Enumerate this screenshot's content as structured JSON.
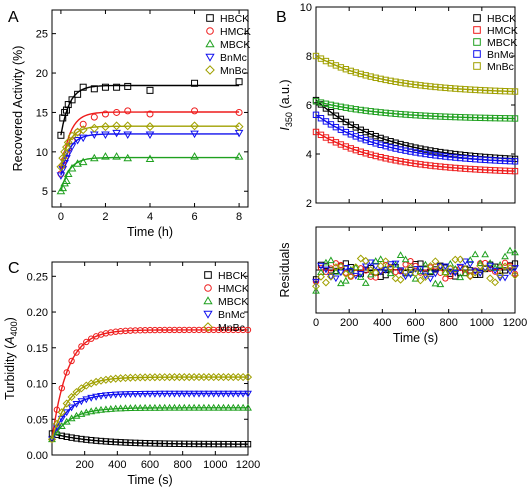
{
  "chart_data": [
    {
      "panel": "A",
      "type": "scatter",
      "xlabel": "Time (h)",
      "ylabel": "Recovered Activity (%)",
      "xlim": [
        -0.4,
        8.4
      ],
      "ylim": [
        3,
        28
      ],
      "xticks": [
        0,
        2,
        4,
        6,
        8
      ],
      "yticks": [
        5,
        10,
        15,
        20,
        25
      ],
      "grid": false,
      "legend": "top-right",
      "fit_lines": true,
      "series": [
        {
          "name": "HBCK",
          "color": "#000000",
          "marker": "square",
          "x": [
            0,
            0.083,
            0.167,
            0.25,
            0.33,
            0.5,
            0.75,
            1,
            1.5,
            2,
            2.5,
            3,
            4,
            6,
            8
          ],
          "y": [
            12.1,
            14.3,
            15.0,
            15.3,
            16.0,
            16.6,
            17.3,
            18.2,
            18.0,
            18.2,
            18.2,
            18.3,
            17.8,
            18.7,
            18.9
          ]
        },
        {
          "name": "HMCK",
          "color": "#ee1c1c",
          "marker": "circle",
          "x": [
            0,
            0.083,
            0.167,
            0.25,
            0.33,
            0.5,
            0.75,
            1,
            1.5,
            2,
            2.5,
            3,
            4,
            6,
            8
          ],
          "y": [
            7.2,
            8.3,
            9.0,
            9.8,
            10.4,
            11.4,
            12.5,
            13.5,
            14.4,
            14.8,
            15.0,
            15.2,
            14.8,
            15.2,
            15.0
          ]
        },
        {
          "name": "MBCK",
          "color": "#1fa01f",
          "marker": "triangle-up",
          "x": [
            0,
            0.083,
            0.167,
            0.25,
            0.33,
            0.5,
            0.75,
            1,
            1.5,
            2,
            2.5,
            3,
            4,
            6,
            8
          ],
          "y": [
            5.0,
            5.4,
            6.0,
            6.3,
            7.2,
            7.9,
            8.5,
            8.7,
            9.2,
            9.4,
            9.4,
            9.2,
            9.1,
            9.4,
            9.4
          ]
        },
        {
          "name": "BnMc",
          "color": "#1010ee",
          "marker": "triangle-down",
          "x": [
            0,
            0.083,
            0.167,
            0.25,
            0.33,
            0.5,
            0.75,
            1,
            1.5,
            2,
            2.5,
            3,
            4,
            6,
            8
          ],
          "y": [
            7.0,
            7.8,
            8.6,
            9.2,
            9.8,
            10.7,
            11.5,
            11.8,
            12.2,
            12.2,
            12.4,
            12.2,
            12.2,
            12.3,
            12.4
          ]
        },
        {
          "name": "MnBc",
          "color": "#a0a000",
          "marker": "diamond",
          "x": [
            0,
            0.083,
            0.167,
            0.25,
            0.33,
            0.5,
            0.75,
            1,
            1.5,
            2,
            2.5,
            3,
            4,
            6,
            8
          ],
          "y": [
            8.1,
            9.2,
            10.0,
            10.6,
            11.2,
            12.0,
            12.5,
            12.8,
            13.0,
            13.2,
            13.3,
            13.3,
            13.2,
            13.3,
            13.2
          ]
        }
      ]
    },
    {
      "panel": "B",
      "type": "scatter",
      "xlabel": "",
      "ylabel": "I350 (a.u.)",
      "ylabel_main": "I",
      "ylabel_sub": "350",
      "ylabel_rest": " (a.u.)",
      "xlim": [
        0,
        1200
      ],
      "ylim": [
        2,
        10
      ],
      "xticks": [
        0,
        200,
        400,
        600,
        800,
        1000,
        1200
      ],
      "yticks": [
        2,
        4,
        6,
        8,
        10
      ],
      "grid": false,
      "legend": "top-right",
      "fit_lines": true,
      "series": [
        {
          "name": "HBCK",
          "color": "#000000",
          "marker": "square",
          "start": 6.2,
          "end": 3.8
        },
        {
          "name": "HMCK",
          "color": "#ee1c1c",
          "marker": "square",
          "start": 4.9,
          "end": 3.3
        },
        {
          "name": "MBCK",
          "color": "#1fa01f",
          "marker": "square",
          "start": 6.15,
          "end": 5.45
        },
        {
          "name": "BnMc",
          "color": "#1010ee",
          "marker": "square",
          "start": 5.6,
          "end": 3.7
        },
        {
          "name": "MnBc",
          "color": "#a0a000",
          "marker": "square",
          "start": 8.0,
          "end": 6.55
        }
      ]
    },
    {
      "panel": "B-residuals",
      "type": "scatter",
      "xlabel": "Time (s)",
      "ylabel": "Residuals",
      "xlim": [
        0,
        1200
      ],
      "ylim": [
        -0.12,
        0.12
      ],
      "xticks": [
        0,
        200,
        400,
        600,
        800,
        1000,
        1200
      ],
      "yticks": [],
      "grid": false,
      "reference_line": 0,
      "series": [
        {
          "name": "HBCK",
          "color": "#000000",
          "marker": "square",
          "amplitude": 0.02
        },
        {
          "name": "HMCK",
          "color": "#ee1c1c",
          "marker": "circle",
          "amplitude": 0.025
        },
        {
          "name": "MBCK",
          "color": "#1fa01f",
          "marker": "triangle-up",
          "amplitude": 0.045
        },
        {
          "name": "BnMc",
          "color": "#1010ee",
          "marker": "triangle-down",
          "amplitude": 0.025
        },
        {
          "name": "MnBc",
          "color": "#a0a000",
          "marker": "diamond",
          "amplitude": 0.035
        }
      ]
    },
    {
      "panel": "C",
      "type": "scatter",
      "xlabel": "Time (s)",
      "ylabel": "Turbidity (A400)",
      "ylabel_main": "Turbidity (",
      "ylabel_italic": "A",
      "ylabel_sub": "400",
      "ylabel_rest": ")",
      "xlim": [
        0,
        1200
      ],
      "ylim": [
        0,
        0.27
      ],
      "xticks": [
        200,
        400,
        600,
        800,
        1000,
        1200
      ],
      "yticks": [
        0.0,
        0.05,
        0.1,
        0.15,
        0.2,
        0.25
      ],
      "grid": false,
      "legend": "top-right",
      "fit_lines": true,
      "series": [
        {
          "name": "HBCK",
          "color": "#000000",
          "marker": "square",
          "y0": 0.03,
          "yinf": 0.015,
          "rate": 0.004
        },
        {
          "name": "HMCK",
          "color": "#ee1c1c",
          "marker": "circle",
          "y0": 0.022,
          "yinf": 0.175,
          "rate": 0.0105
        },
        {
          "name": "MBCK",
          "color": "#1fa01f",
          "marker": "triangle-up",
          "y0": 0.022,
          "yinf": 0.066,
          "rate": 0.009
        },
        {
          "name": "BnMc",
          "color": "#1010ee",
          "marker": "triangle-down",
          "y0": 0.022,
          "yinf": 0.086,
          "rate": 0.01
        },
        {
          "name": "MnBc",
          "color": "#a0a000",
          "marker": "diamond",
          "y0": 0.022,
          "yinf": 0.109,
          "rate": 0.0095
        }
      ]
    }
  ],
  "panels": {
    "A": "A",
    "B": "B",
    "C": "C"
  }
}
